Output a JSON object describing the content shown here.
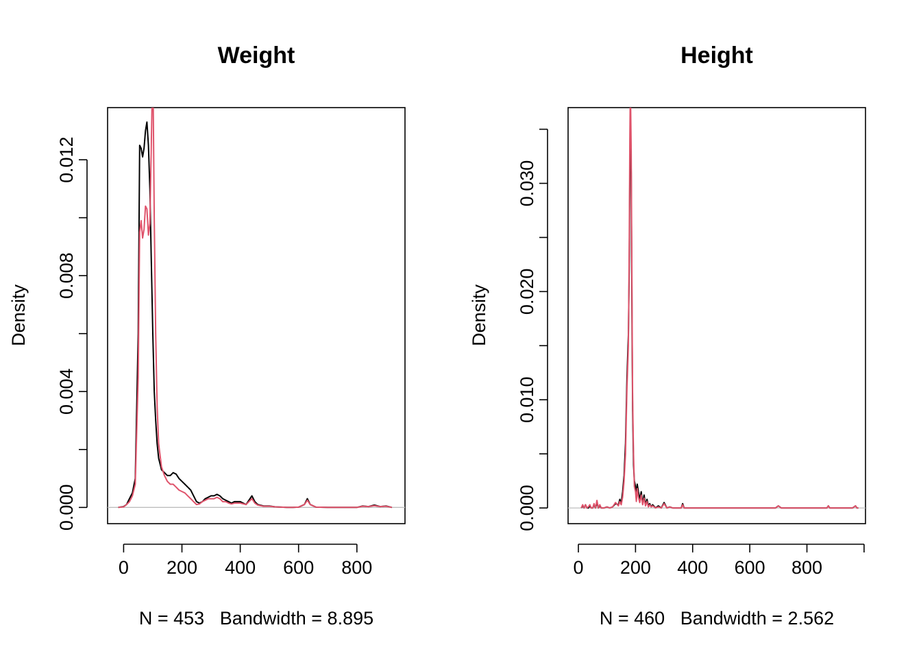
{
  "colors": {
    "series_black": "#000000",
    "series_red": "#DF536B",
    "baseline": "#BEBEBE",
    "frame": "#000000"
  },
  "chart_data": [
    {
      "type": "line",
      "title": "Weight",
      "xlabel": "N = 453   Bandwidth = 8.895",
      "ylabel": "Density",
      "xlim": [
        -55,
        965
      ],
      "ylim": [
        -0.00056,
        0.0138
      ],
      "xticks": [
        0,
        200,
        400,
        600,
        800
      ],
      "yticks": [
        0.0,
        0.002,
        0.004,
        0.006,
        0.008,
        0.01,
        0.012
      ],
      "ytick_labels": [
        "0.000",
        "",
        "0.004",
        "",
        "0.008",
        "",
        "0.012"
      ],
      "xtick_labels": [
        "0",
        "200",
        "400",
        "600",
        "800"
      ],
      "series": [
        {
          "color": "black",
          "x": [
            -18,
            0,
            10,
            20,
            30,
            40,
            50,
            55,
            60,
            65,
            70,
            75,
            80,
            85,
            90,
            95,
            100,
            105,
            110,
            115,
            120,
            130,
            140,
            150,
            160,
            170,
            180,
            190,
            200,
            210,
            220,
            230,
            240,
            250,
            260,
            270,
            280,
            290,
            300,
            310,
            320,
            330,
            340,
            350,
            360,
            370,
            380,
            390,
            400,
            420,
            440,
            450,
            460,
            480,
            500,
            520,
            540,
            560,
            580,
            600,
            620,
            630,
            640,
            660,
            700,
            760,
            800,
            820,
            840,
            860,
            880,
            900,
            920
          ],
          "y": [
            0,
            3e-05,
            0.0001,
            0.0003,
            0.0005,
            0.001,
            0.006,
            0.0125,
            0.0124,
            0.0121,
            0.0124,
            0.013,
            0.0133,
            0.0125,
            0.011,
            0.0085,
            0.006,
            0.004,
            0.003,
            0.0022,
            0.0017,
            0.0013,
            0.0012,
            0.0011,
            0.0011,
            0.0012,
            0.00115,
            0.001,
            0.0009,
            0.0008,
            0.0007,
            0.0006,
            0.0004,
            0.0002,
            0.00015,
            0.0002,
            0.0003,
            0.00035,
            0.0004,
            0.0004,
            0.00045,
            0.0004,
            0.0003,
            0.00025,
            0.0002,
            0.00015,
            0.0002,
            0.0002,
            0.0002,
            0.0001,
            0.0004,
            0.0002,
            0.0001,
            5e-05,
            5e-05,
            2e-05,
            1e-05,
            0,
            0,
            1e-05,
            0.0001,
            0.0003,
            0.0001,
            1e-05,
            0,
            0,
            0,
            5e-05,
            3e-05,
            8e-05,
            3e-05,
            5e-05,
            0
          ]
        },
        {
          "color": "red",
          "x": [
            -18,
            0,
            10,
            20,
            30,
            40,
            50,
            55,
            60,
            65,
            70,
            75,
            80,
            85,
            90,
            95,
            100,
            105,
            110,
            115,
            120,
            130,
            140,
            150,
            160,
            170,
            180,
            190,
            200,
            210,
            220,
            230,
            240,
            250,
            260,
            270,
            280,
            290,
            300,
            310,
            320,
            330,
            340,
            350,
            360,
            370,
            380,
            390,
            400,
            420,
            440,
            450,
            460,
            480,
            500,
            520,
            540,
            560,
            580,
            600,
            620,
            630,
            640,
            660,
            700,
            760,
            800,
            820,
            840,
            860,
            880,
            900,
            920
          ],
          "y": [
            0,
            2e-05,
            0.0001,
            0.0002,
            0.0004,
            0.0008,
            0.0045,
            0.0095,
            0.0099,
            0.0093,
            0.0096,
            0.0104,
            0.0103,
            0.0094,
            0.0098,
            0.0125,
            0.0155,
            0.01,
            0.006,
            0.0035,
            0.0022,
            0.0014,
            0.0011,
            0.0009,
            0.0008,
            0.0008,
            0.0007,
            0.0006,
            0.00055,
            0.0005,
            0.0004,
            0.0003,
            0.0002,
            0.0001,
            0.00012,
            0.0002,
            0.00025,
            0.0003,
            0.0003,
            0.0003,
            0.00035,
            0.0003,
            0.0002,
            0.0002,
            0.00015,
            0.00012,
            0.00015,
            0.00015,
            0.00015,
            0.0001,
            0.0003,
            0.00015,
            8e-05,
            4e-05,
            4e-05,
            2e-05,
            1e-05,
            0,
            0,
            1e-05,
            0.0001,
            0.00025,
            0.0001,
            1e-05,
            0,
            0,
            0,
            4e-05,
            3e-05,
            6e-05,
            3e-05,
            4e-05,
            0
          ]
        }
      ]
    },
    {
      "type": "line",
      "title": "Height",
      "xlabel": "N = 460   Bandwidth = 2.562",
      "ylabel": "Density",
      "xlim": [
        -36,
        1005
      ],
      "ylim": [
        -0.00145,
        0.037
      ],
      "xticks": [
        0,
        200,
        400,
        600,
        800
      ],
      "xtick_labels": [
        "0",
        "200",
        "400",
        "600",
        "800"
      ],
      "x_extra_tick": 1000,
      "yticks": [
        0.0,
        0.005,
        0.01,
        0.015,
        0.02,
        0.025,
        0.03,
        0.035
      ],
      "ytick_labels": [
        "0.000",
        "",
        "0.010",
        "",
        "0.020",
        "",
        "0.030",
        ""
      ],
      "series": [
        {
          "color": "black",
          "x": [
            10,
            15,
            20,
            25,
            30,
            35,
            40,
            45,
            50,
            55,
            60,
            65,
            70,
            75,
            80,
            90,
            100,
            110,
            120,
            130,
            140,
            145,
            150,
            155,
            160,
            165,
            170,
            175,
            178,
            180,
            182,
            185,
            188,
            190,
            193,
            196,
            200,
            203,
            206,
            210,
            215,
            220,
            225,
            230,
            235,
            240,
            245,
            250,
            255,
            260,
            270,
            280,
            290,
            300,
            310,
            320,
            330,
            340,
            350,
            360,
            365,
            370,
            380,
            400,
            500,
            600,
            690,
            700,
            710,
            800,
            870,
            875,
            880,
            900,
            960,
            970,
            975,
            980
          ],
          "y": [
            0,
            0.0002,
            0,
            0.0003,
            0,
            0,
            0.0002,
            0,
            0,
            0.0003,
            0,
            0.0005,
            0,
            0.0002,
            0,
            0,
            0.0001,
            0,
            0.0001,
            0.0004,
            0.0003,
            0.0008,
            0.0004,
            0.0015,
            0.003,
            0.006,
            0.012,
            0.016,
            0.022,
            0.031,
            0.036,
            0.031,
            0.016,
            0.009,
            0.004,
            0.0025,
            0.002,
            0.0008,
            0.0022,
            0.0015,
            0.0008,
            0.0015,
            0.0004,
            0.0012,
            0.0003,
            0.0008,
            0.0002,
            0.0004,
            0.0001,
            0.0003,
            0,
            0.0002,
            0,
            0.0005,
            0,
            0.0001,
            0,
            0,
            0,
            0,
            0.0004,
            0,
            0,
            0,
            0,
            0,
            0,
            0.0002,
            0,
            0,
            0,
            0.0002,
            0,
            0,
            0,
            0.0002,
            0,
            0
          ]
        },
        {
          "color": "red",
          "x": [
            10,
            15,
            20,
            25,
            30,
            35,
            40,
            45,
            50,
            55,
            60,
            65,
            70,
            75,
            80,
            90,
            100,
            110,
            120,
            130,
            140,
            145,
            150,
            155,
            160,
            165,
            170,
            175,
            178,
            180,
            182,
            185,
            188,
            190,
            193,
            196,
            200,
            203,
            206,
            210,
            215,
            220,
            225,
            230,
            235,
            240,
            245,
            250,
            255,
            260,
            270,
            280,
            290,
            300,
            310,
            320,
            330,
            340,
            350,
            360,
            365,
            370,
            380,
            400,
            500,
            600,
            690,
            700,
            710,
            800,
            870,
            875,
            880,
            900,
            960,
            970,
            975,
            980
          ],
          "y": [
            0,
            0.0003,
            0,
            0.0003,
            0,
            0.0001,
            0.0003,
            0,
            0,
            0.0004,
            0,
            0.0007,
            0,
            0.0003,
            0,
            0,
            0.0001,
            0,
            0.0001,
            0.0005,
            0.0002,
            0.0006,
            0.0003,
            0.001,
            0.0025,
            0.005,
            0.011,
            0.015,
            0.024,
            0.034,
            0.039,
            0.033,
            0.018,
            0.01,
            0.005,
            0.002,
            0.0015,
            0.0006,
            0.0018,
            0.001,
            0.0005,
            0.0012,
            0.0003,
            0.0009,
            0.0002,
            0.0006,
            0.0001,
            0.0003,
            0.0001,
            0.0002,
            0,
            0.0001,
            0,
            0.0004,
            0,
            0.0001,
            0,
            0,
            0,
            0,
            0.0003,
            0,
            0,
            0,
            0,
            0,
            0,
            0.0002,
            0,
            0,
            0,
            0.0002,
            0,
            0,
            0,
            0.0002,
            0,
            0
          ]
        }
      ]
    }
  ]
}
